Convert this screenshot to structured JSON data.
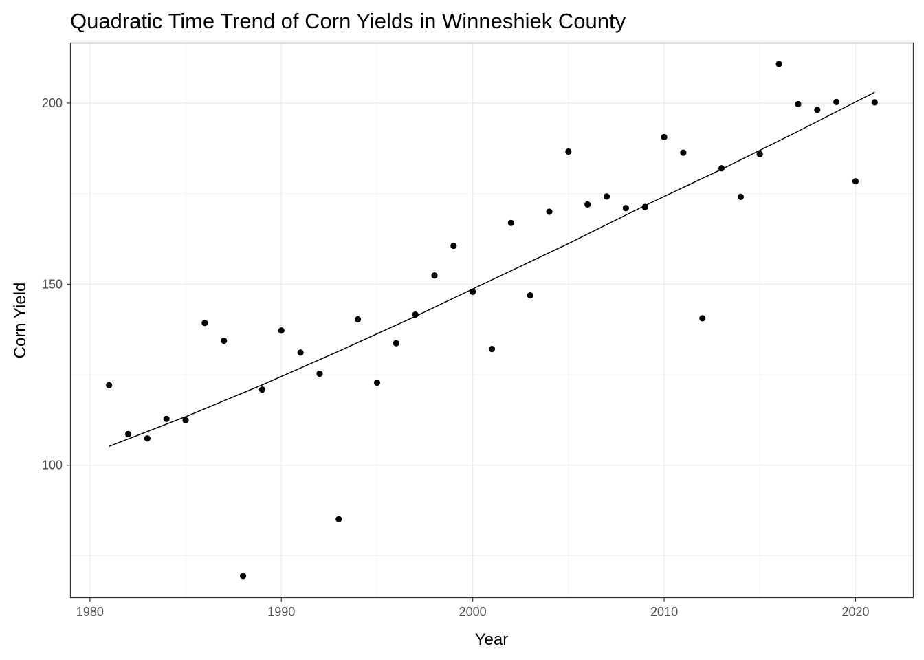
{
  "chart_data": {
    "type": "scatter",
    "title": "Quadratic Time Trend of Corn Yields in Winneshiek County",
    "xlabel": "Year",
    "ylabel": "Corn Yield",
    "xlim": [
      1979,
      2023
    ],
    "ylim": [
      63.5,
      216.5
    ],
    "x_ticks": [
      1980,
      1990,
      2000,
      2010,
      2020
    ],
    "x_tick_labels": [
      "1980",
      "1990",
      "2000",
      "2010",
      "2020"
    ],
    "y_ticks": [
      100,
      150,
      200
    ],
    "y_tick_labels": [
      "100",
      "150",
      "200"
    ],
    "grid": true,
    "legend": "none",
    "series": [
      {
        "kind": "points",
        "x": [
          1981,
          1982,
          1983,
          1984,
          1985,
          1986,
          1987,
          1988,
          1989,
          1990,
          1991,
          1992,
          1993,
          1994,
          1995,
          1996,
          1997,
          1998,
          1999,
          2000,
          2001,
          2002,
          2003,
          2004,
          2005,
          2006,
          2007,
          2008,
          2009,
          2010,
          2011,
          2012,
          2013,
          2014,
          2015,
          2016,
          2017,
          2018,
          2019,
          2020,
          2021
        ],
        "y": [
          122.1,
          108.6,
          107.4,
          112.8,
          112.4,
          139.3,
          134.4,
          69.4,
          120.9,
          137.2,
          131.1,
          125.3,
          85.1,
          140.3,
          122.8,
          133.7,
          141.6,
          152.4,
          160.6,
          147.9,
          132.1,
          166.9,
          146.9,
          170.0,
          186.6,
          172.0,
          174.2,
          171.0,
          171.3,
          190.6,
          186.3,
          140.6,
          182.0,
          174.1,
          185.9,
          210.8,
          199.7,
          198.1,
          200.3,
          178.4,
          200.2
        ]
      },
      {
        "kind": "line",
        "x": [
          1981,
          1985,
          1989,
          1993,
          1997,
          2001,
          2005,
          2009,
          2013,
          2017,
          2021
        ],
        "y": [
          105.2,
          113.4,
          122.2,
          131.5,
          141.1,
          151.2,
          161.2,
          171.7,
          181.7,
          192.2,
          203.0
        ]
      }
    ]
  }
}
